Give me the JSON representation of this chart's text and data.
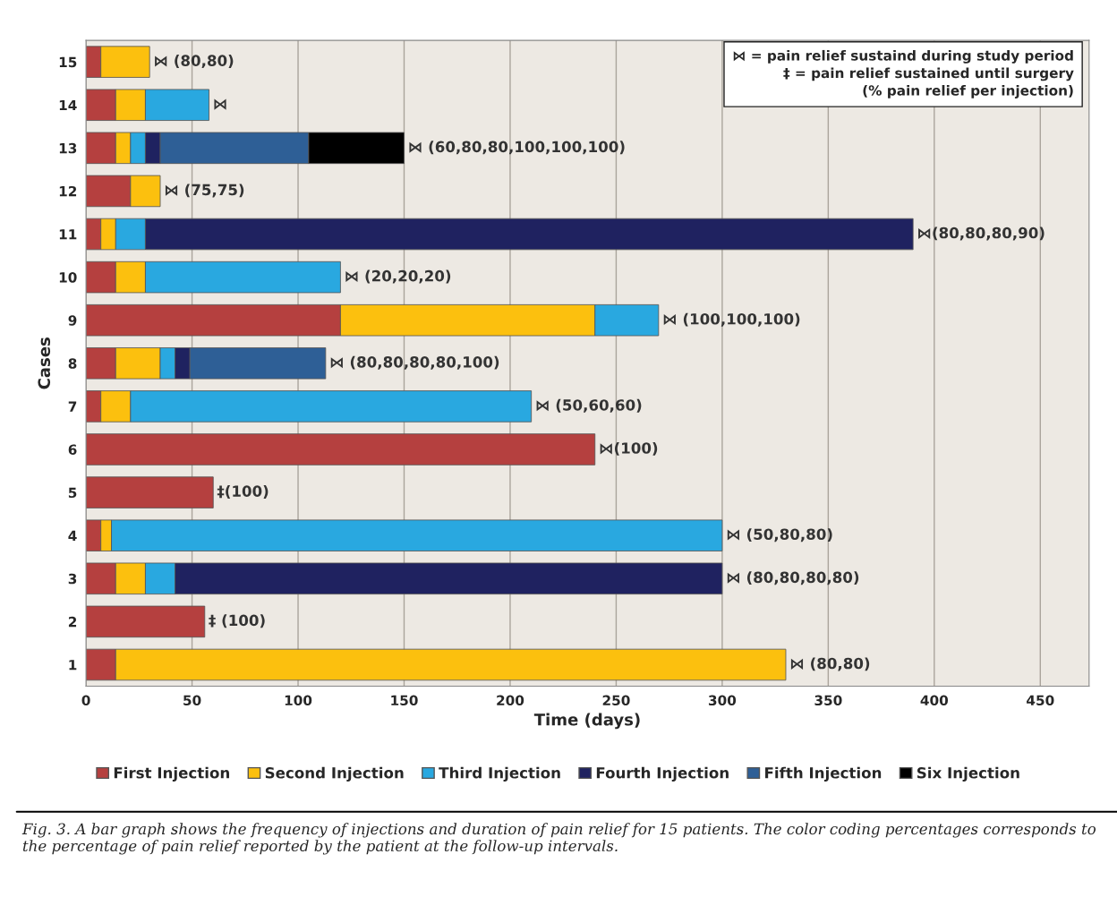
{
  "chart_data": {
    "type": "bar",
    "orientation": "horizontal",
    "stacked": true,
    "xlabel": "Time (days)",
    "ylabel": "Cases",
    "categories": [
      "15",
      "14",
      "13",
      "12",
      "11",
      "10",
      "9",
      "8",
      "7",
      "6",
      "5",
      "4",
      "3",
      "2",
      "1"
    ],
    "series": [
      {
        "name": "First Injection",
        "color": "#b5403f",
        "values": [
          7,
          14,
          14,
          21,
          7,
          14,
          120,
          14,
          7,
          240,
          60,
          7,
          14,
          56,
          14
        ]
      },
      {
        "name": "Second Injection",
        "color": "#fcc00e",
        "values": [
          23,
          14,
          7,
          14,
          7,
          14,
          120,
          21,
          14,
          null,
          null,
          5,
          14,
          null,
          316
        ]
      },
      {
        "name": "Third Injection",
        "color": "#29a8e0",
        "values": [
          null,
          30,
          7,
          null,
          14,
          92,
          30,
          7,
          189,
          null,
          null,
          288,
          14,
          null,
          null
        ]
      },
      {
        "name": "Fourth Injection",
        "color": "#1f2260",
        "values": [
          null,
          null,
          7,
          null,
          362,
          null,
          null,
          7,
          null,
          null,
          null,
          null,
          258,
          null,
          null
        ]
      },
      {
        "name": "Fifth Injection",
        "color": "#2e5f96",
        "values": [
          null,
          null,
          70,
          null,
          null,
          null,
          null,
          64,
          null,
          null,
          null,
          null,
          null,
          null,
          null
        ]
      },
      {
        "name": "Six Injection",
        "color": "#000000",
        "values": [
          null,
          null,
          45,
          null,
          null,
          null,
          null,
          null,
          null,
          null,
          null,
          null,
          null,
          null,
          null
        ]
      }
    ],
    "xlim": [
      0,
      473
    ],
    "xticks": [
      0,
      50,
      100,
      150,
      200,
      250,
      300,
      350,
      400,
      450
    ],
    "grid": "x",
    "legend": "bottom",
    "annotations": [
      {
        "text": "⋈ (80,80)",
        "x": 30,
        "y": "15"
      },
      {
        "text": "⋈",
        "x": 58,
        "y": "14"
      },
      {
        "text": "⋈ (60,80,80,100,100,100)",
        "x": 150,
        "y": "13"
      },
      {
        "text": "⋈ (75,75)",
        "x": 35,
        "y": "12"
      },
      {
        "text": "⋈(80,80,80,90)",
        "x": 390,
        "y": "11"
      },
      {
        "text": "⋈ (20,20,20)",
        "x": 120,
        "y": "10"
      },
      {
        "text": "⋈ (100,100,100)",
        "x": 270,
        "y": "9"
      },
      {
        "text": "⋈ (80,80,80,80,100)",
        "x": 113,
        "y": "8"
      },
      {
        "text": "⋈ (50,60,60)",
        "x": 210,
        "y": "7"
      },
      {
        "text": "⋈(100)",
        "x": 240,
        "y": "6"
      },
      {
        "text": "‡(100)",
        "x": 60,
        "y": "5"
      },
      {
        "text": "⋈ (50,80,80)",
        "x": 300,
        "y": "4"
      },
      {
        "text": "⋈ (80,80,80,80)",
        "x": 300,
        "y": "3"
      },
      {
        "text": "‡ (100)",
        "x": 56,
        "y": "2"
      },
      {
        "text": "⋈ (80,80)",
        "x": 330,
        "y": "1"
      },
      "⋈ = pain relief sustaind during study period",
      "‡ = pain relief sustained until surgery",
      "(% pain relief per injection)",
      "Fig. 3. A bar graph shows the frequency of injections and duration of pain relief for 15 patients. The color coding percentages corresponds to the percentage of pain relief reported by the patient at the follow-up intervals."
    ]
  }
}
